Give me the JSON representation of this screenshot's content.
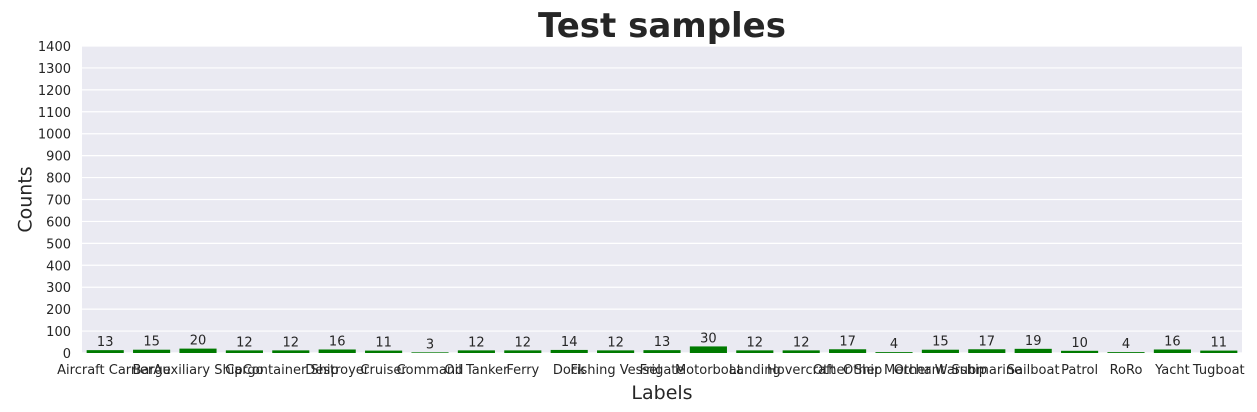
{
  "chart_data": {
    "type": "bar",
    "title": "Test samples",
    "xlabel": "Labels",
    "ylabel": "Counts",
    "ylim": [
      0,
      1400
    ],
    "yticks": [
      0,
      100,
      200,
      300,
      400,
      500,
      600,
      700,
      800,
      900,
      1000,
      1100,
      1200,
      1300,
      1400
    ],
    "grid": true,
    "legend": "none",
    "categories": [
      "Aircraft Carrier",
      "Barge",
      "Auxiliary Ship",
      "Cargo",
      "Container Ship",
      "Destroyer",
      "Cruiser",
      "Command",
      "Oil Tanker",
      "Ferry",
      "Dock",
      "Fishing Vessel",
      "Frigate",
      "Motorboat",
      "Landing",
      "Hovercraft",
      "Other Ship",
      "Other Merchant",
      "Other Warship",
      "Submarine",
      "Sailboat",
      "Patrol",
      "RoRo",
      "Yacht",
      "Tugboat"
    ],
    "values": [
      13,
      15,
      20,
      12,
      12,
      16,
      11,
      3,
      12,
      12,
      14,
      12,
      13,
      30,
      12,
      12,
      17,
      4,
      15,
      17,
      19,
      10,
      4,
      16,
      11
    ],
    "colors": {
      "bar": "#007a00",
      "plot_background": "#eaeaf2",
      "grid": "#ffffff",
      "text": "#262626"
    }
  }
}
